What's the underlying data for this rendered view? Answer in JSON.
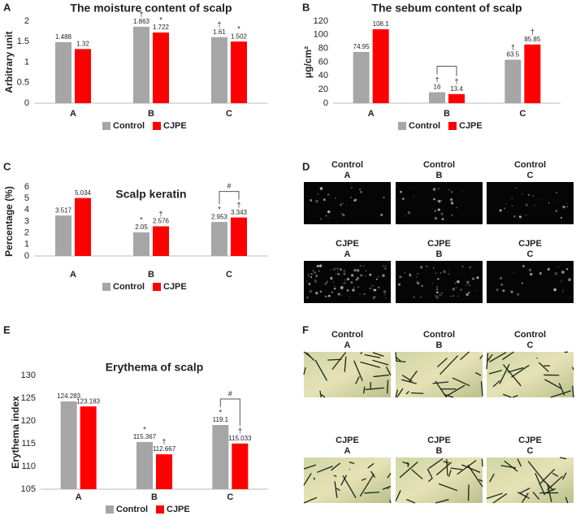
{
  "chart_data": [
    {
      "type": "bar",
      "panel": "A",
      "title": "The moisture content of scalp",
      "y_label": "Arbitrary unit",
      "categories": [
        "A",
        "B",
        "C"
      ],
      "ylim": [
        0,
        2
      ],
      "yticks": [
        0,
        0.5,
        1,
        1.5,
        2
      ],
      "grid": false,
      "series": [
        {
          "name": "Control",
          "color": "#a6a6a6",
          "values": [
            1.488,
            1.863,
            1.61
          ],
          "markers": [
            null,
            "†",
            "†"
          ]
        },
        {
          "name": "CJPE",
          "color": "#ff0000",
          "values": [
            1.32,
            1.722,
            1.502
          ],
          "markers": [
            null,
            "*",
            "*"
          ]
        }
      ]
    },
    {
      "type": "bar",
      "panel": "B",
      "title": "The sebum content of scalp",
      "y_label": "μg/cm²",
      "categories": [
        "A",
        "B",
        "C"
      ],
      "ylim": [
        0,
        120
      ],
      "yticks": [
        0,
        20,
        40,
        60,
        80,
        100,
        120
      ],
      "grid": false,
      "series": [
        {
          "name": "Control",
          "color": "#a6a6a6",
          "values": [
            74.95,
            16,
            63.5
          ],
          "markers": [
            null,
            "†",
            "†"
          ]
        },
        {
          "name": "CJPE",
          "color": "#ff0000",
          "values": [
            108.1,
            13.4,
            85.85
          ],
          "markers": [
            null,
            "†",
            "†"
          ]
        }
      ],
      "bracket": {
        "category": "B"
      }
    },
    {
      "type": "bar",
      "panel": "C",
      "title": "Scalp keratin",
      "y_label": "Percentage (%)",
      "categories": [
        "A",
        "B",
        "C"
      ],
      "ylim": [
        0,
        6
      ],
      "yticks": [
        0,
        1,
        2,
        3,
        4,
        5,
        6
      ],
      "grid": false,
      "series": [
        {
          "name": "Control",
          "color": "#a6a6a6",
          "values": [
            3.517,
            2.05,
            2.953
          ],
          "markers": [
            null,
            "*",
            "*"
          ]
        },
        {
          "name": "CJPE",
          "color": "#ff0000",
          "values": [
            5.034,
            2.576,
            3.343
          ],
          "markers": [
            null,
            "†",
            "†"
          ]
        }
      ],
      "bracket": {
        "category": "C",
        "label": "#"
      }
    },
    {
      "type": "bar",
      "panel": "E",
      "title": "Erythema of scalp",
      "y_label": "Erythema index",
      "categories": [
        "A",
        "B",
        "C"
      ],
      "ylim": [
        105,
        130
      ],
      "yticks": [
        105,
        110,
        115,
        120,
        125,
        130
      ],
      "grid": false,
      "series": [
        {
          "name": "Control",
          "color": "#a6a6a6",
          "values": [
            124.283,
            115.367,
            119.1
          ],
          "markers": [
            null,
            "*",
            "*"
          ]
        },
        {
          "name": "CJPE",
          "color": "#ff0000",
          "values": [
            123.183,
            112.667,
            115.033
          ],
          "markers": [
            null,
            "†",
            "†"
          ]
        }
      ],
      "bracket": {
        "category": "C",
        "label": "#"
      }
    }
  ],
  "image_panels": [
    {
      "panel": "D",
      "style": "dark",
      "images": [
        {
          "group": "Control",
          "category": "A"
        },
        {
          "group": "Control",
          "category": "B"
        },
        {
          "group": "Control",
          "category": "C"
        },
        {
          "group": "CJPE",
          "category": "A"
        },
        {
          "group": "CJPE",
          "category": "B"
        },
        {
          "group": "CJPE",
          "category": "C"
        }
      ]
    },
    {
      "panel": "F",
      "style": "scalp",
      "images": [
        {
          "group": "Control",
          "category": "A"
        },
        {
          "group": "Control",
          "category": "B"
        },
        {
          "group": "Control",
          "category": "C"
        },
        {
          "group": "CJPE",
          "category": "A"
        },
        {
          "group": "CJPE",
          "category": "B"
        },
        {
          "group": "CJPE",
          "category": "C"
        }
      ]
    }
  ]
}
